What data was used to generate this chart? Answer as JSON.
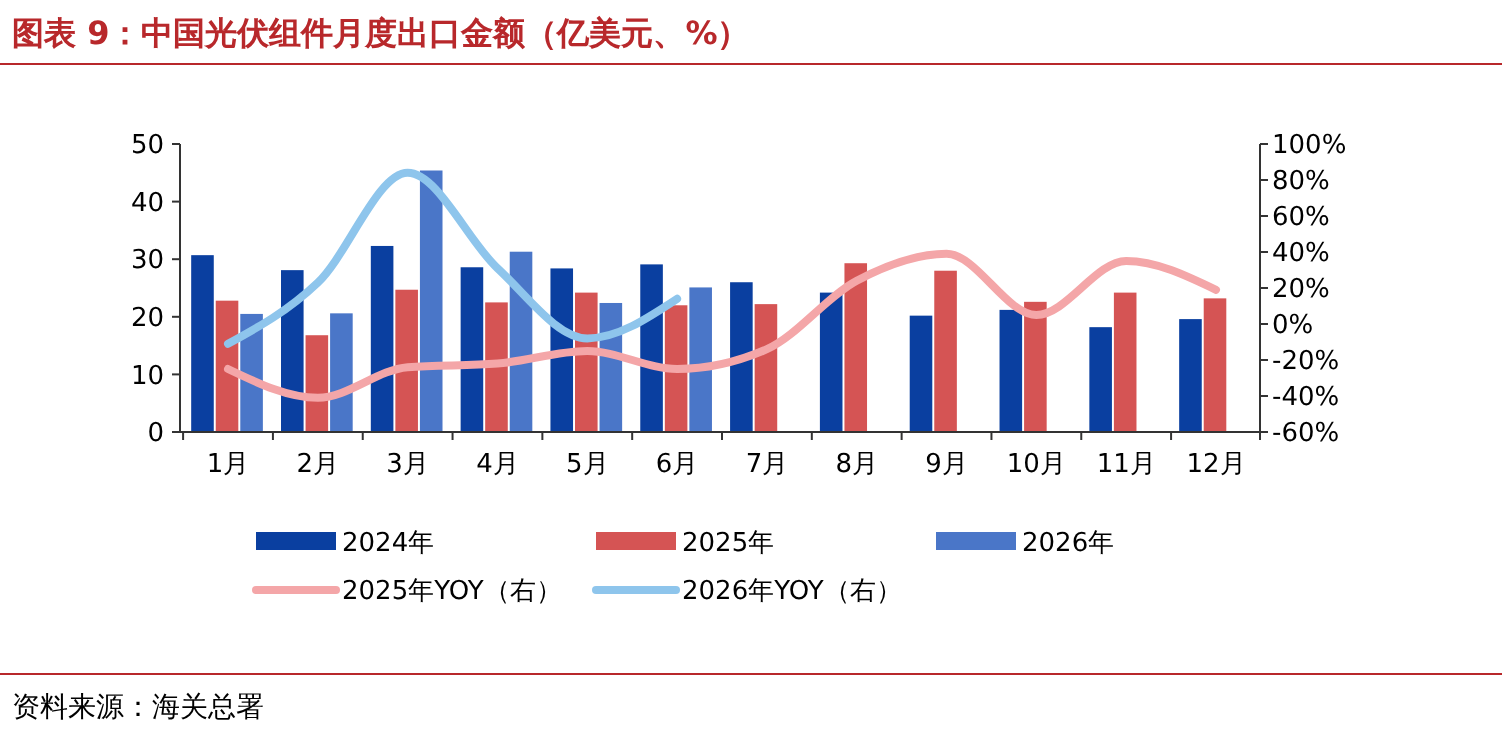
{
  "chart_data": {
    "type": "bar",
    "title": "图表 9：中国光伏组件月度出口金额（亿美元、%）",
    "categories": [
      "1月",
      "2月",
      "3月",
      "4月",
      "5月",
      "6月",
      "7月",
      "8月",
      "9月",
      "10月",
      "11月",
      "12月"
    ],
    "series": [
      {
        "name": "2024年",
        "color": "#0a3fa0",
        "values": [
          30.7,
          28.1,
          32.3,
          28.6,
          28.4,
          29.1,
          26.0,
          24.2,
          20.2,
          21.2,
          18.2,
          19.6
        ]
      },
      {
        "name": "2025年",
        "color": "#d55454",
        "values": [
          22.8,
          16.8,
          24.7,
          22.5,
          24.2,
          22.0,
          22.2,
          29.3,
          28.0,
          22.6,
          24.2,
          23.2
        ]
      },
      {
        "name": "2026年",
        "color": "#4a76c8",
        "values": [
          20.5,
          20.6,
          45.4,
          31.3,
          22.4,
          25.1,
          null,
          null,
          null,
          null,
          null,
          null
        ]
      },
      {
        "name": "2025年YOY（右）",
        "type": "line",
        "axis": "y2",
        "color": "#f4a6a8",
        "values": [
          -25,
          -41,
          -24,
          -22,
          -15,
          -25,
          -14,
          24,
          39,
          5,
          35,
          19
        ]
      },
      {
        "name": "2026年YOY（右）",
        "type": "line",
        "axis": "y2",
        "color": "#8ec5ec",
        "values": [
          -11,
          23,
          84,
          31,
          -8,
          14,
          null,
          null,
          null,
          null,
          null,
          null
        ]
      }
    ],
    "ylim": [
      0,
      50
    ],
    "yticks": [
      0,
      10,
      20,
      30,
      40,
      50
    ],
    "y2lim": [
      -60,
      100
    ],
    "y2ticks": [
      {
        "value": -60,
        "label": "-60%"
      },
      {
        "value": -40,
        "label": "-40%"
      },
      {
        "value": -20,
        "label": "-20%"
      },
      {
        "value": 0,
        "label": "0%"
      },
      {
        "value": 20,
        "label": "20%"
      },
      {
        "value": 40,
        "label": "40%"
      },
      {
        "value": 60,
        "label": "60%"
      },
      {
        "value": 80,
        "label": "80%"
      },
      {
        "value": 100,
        "label": "100%"
      }
    ],
    "legend": "bottom",
    "grid": false,
    "annotations": [
      "资料来源：海关总署"
    ]
  }
}
